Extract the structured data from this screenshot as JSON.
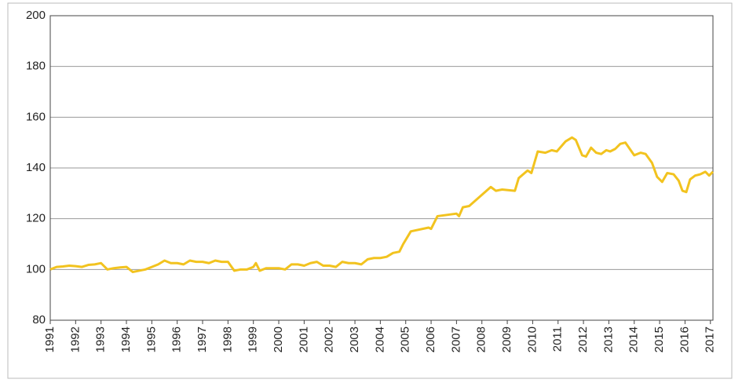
{
  "chart_data": {
    "type": "line",
    "xlim": [
      1991,
      2017.1
    ],
    "xticks": [
      1991,
      1992,
      1993,
      1994,
      1995,
      1996,
      1997,
      1998,
      1999,
      2000,
      2001,
      2002,
      2003,
      2004,
      2005,
      2006,
      2007,
      2008,
      2009,
      2010,
      2011,
      2012,
      2013,
      2014,
      2015,
      2016,
      2017
    ],
    "ylim": [
      80,
      200
    ],
    "yticks": [
      80,
      100,
      120,
      140,
      160,
      180,
      200
    ],
    "grid": true,
    "x": [
      1991.0,
      1991.25,
      1991.5,
      1991.75,
      1992.0,
      1992.25,
      1992.5,
      1992.75,
      1993.0,
      1993.25,
      1993.5,
      1993.75,
      1994.0,
      1994.25,
      1994.5,
      1994.75,
      1995.0,
      1995.25,
      1995.5,
      1995.75,
      1996.0,
      1996.25,
      1996.5,
      1996.75,
      1997.0,
      1997.25,
      1997.5,
      1997.75,
      1998.0,
      1998.25,
      1998.5,
      1998.75,
      1999.0,
      1999.1,
      1999.25,
      1999.5,
      1999.75,
      2000.0,
      2000.25,
      2000.5,
      2000.75,
      2001.0,
      2001.25,
      2001.5,
      2001.75,
      2002.0,
      2002.25,
      2002.5,
      2002.75,
      2003.0,
      2003.25,
      2003.5,
      2003.75,
      2004.0,
      2004.25,
      2004.5,
      2004.75,
      2004.9,
      2005.2,
      2005.9,
      2006.0,
      2006.25,
      2007.0,
      2007.1,
      2007.25,
      2007.5,
      2008.35,
      2008.55,
      2008.8,
      2009.3,
      2009.45,
      2009.8,
      2009.95,
      2010.2,
      2010.5,
      2010.75,
      2010.95,
      2011.3,
      2011.55,
      2011.7,
      2011.95,
      2012.1,
      2012.3,
      2012.5,
      2012.7,
      2012.9,
      2013.05,
      2013.25,
      2013.45,
      2013.65,
      2014.0,
      2014.25,
      2014.45,
      2014.7,
      2014.9,
      2015.1,
      2015.3,
      2015.55,
      2015.75,
      2015.9,
      2016.05,
      2016.2,
      2016.4,
      2016.6,
      2016.8,
      2016.95,
      2017.1
    ],
    "series": [
      {
        "color": "#f2c31f",
        "values": [
          100,
          101,
          101.2,
          101.5,
          101.3,
          101,
          101.8,
          102,
          102.5,
          100,
          100.5,
          100.8,
          101,
          99,
          99.5,
          100,
          101,
          102,
          103.5,
          102.5,
          102.5,
          102,
          103.5,
          103,
          103,
          102.5,
          103.5,
          103,
          103,
          99.5,
          100,
          100,
          101,
          102.5,
          99.5,
          100.5,
          100.5,
          100.5,
          100,
          102,
          102,
          101.5,
          102.5,
          103,
          101.5,
          101.5,
          101,
          103,
          102.5,
          102.5,
          102,
          104,
          104.5,
          104.5,
          105,
          106.5,
          107,
          110,
          115,
          116.5,
          116,
          121,
          122,
          121,
          124.5,
          125,
          132.5,
          131,
          131.5,
          131,
          136,
          139,
          138,
          146.5,
          146,
          147,
          146.5,
          150.5,
          152,
          151,
          145,
          144.5,
          148,
          146,
          145.5,
          147,
          146.5,
          147.5,
          149.5,
          150,
          145,
          146,
          145.5,
          142,
          136.5,
          134.5,
          138,
          137.5,
          135,
          131,
          130.5,
          135.5,
          137,
          137.5,
          138.5,
          137,
          138.5
        ]
      }
    ]
  }
}
